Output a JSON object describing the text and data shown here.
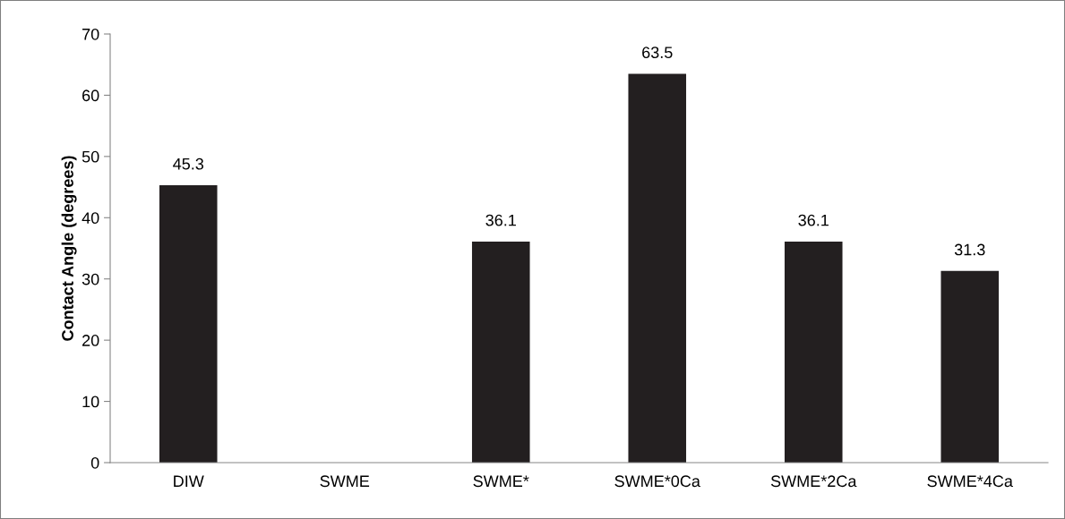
{
  "chart_data": {
    "type": "bar",
    "ylabel": "Contact Angle (degrees)",
    "categories": [
      "DIW",
      "SWME",
      "SWME*",
      "SWME*0Ca",
      "SWME*2Ca",
      "SWME*4Ca"
    ],
    "values": [
      45.3,
      null,
      36.1,
      63.5,
      36.1,
      31.3
    ],
    "color": "#231f20",
    "ylim": [
      0,
      70
    ],
    "yticks": [
      0,
      10,
      20,
      30,
      40,
      50,
      60,
      70
    ],
    "data_labels": true,
    "grid": false,
    "legend": false
  }
}
